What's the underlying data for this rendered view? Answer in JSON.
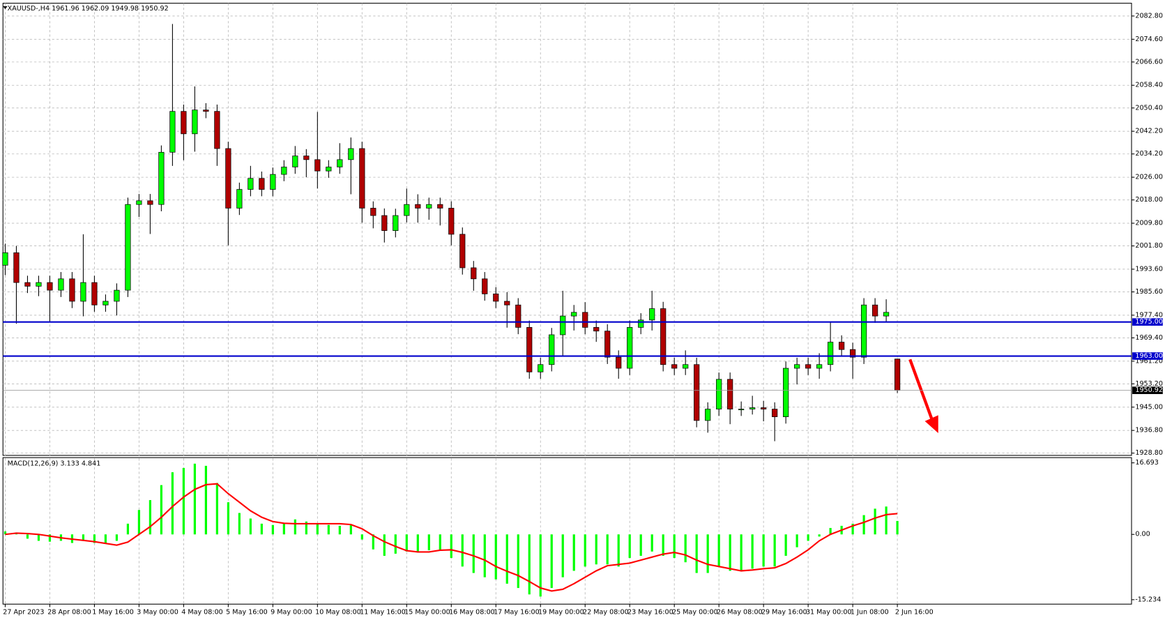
{
  "chart_data": [
    {
      "type": "candlestick",
      "title": "XAUUSD-,H4",
      "categories": [
        "27 Apr 2023",
        null,
        null,
        null,
        "28 Apr 08:00",
        null,
        null,
        null,
        "1 May 16:00",
        null,
        null,
        null,
        "3 May 00:00",
        null,
        null,
        null,
        "4 May 08:00",
        null,
        null,
        null,
        "5 May 16:00",
        null,
        null,
        null,
        "9 May 00:00",
        null,
        null,
        null,
        "10 May 08:00",
        null,
        null,
        null,
        "11 May 16:00",
        null,
        null,
        null,
        "15 May 00:00",
        null,
        null,
        null,
        "16 May 08:00",
        null,
        null,
        null,
        "17 May 16:00",
        null,
        null,
        null,
        "19 May 00:00",
        null,
        null,
        null,
        "22 May 08:00",
        null,
        null,
        null,
        "23 May 16:00",
        null,
        null,
        null,
        "25 May 00:00",
        null,
        null,
        null,
        "26 May 08:00",
        null,
        null,
        null,
        "29 May 16:00",
        null,
        null,
        null,
        "31 May 00:00",
        null,
        null,
        null,
        "1 Jun 08:00",
        null,
        null,
        null,
        "2 Jun 16:00"
      ],
      "open": [
        1995.0,
        1999.4,
        1988.9,
        1987.6,
        1988.9,
        1986.2,
        1990.2,
        1982.3,
        1988.9,
        1981.0,
        1982.3,
        1986.2,
        2016.4,
        2017.7,
        2016.4,
        2034.8,
        2049.2,
        2041.3,
        2049.7,
        2049.2,
        2036.1,
        2015.1,
        2021.7,
        2025.6,
        2021.7,
        2027.0,
        2029.6,
        2033.5,
        2032.2,
        2028.2,
        2029.6,
        2032.2,
        2036.1,
        2015.1,
        2012.5,
        2007.2,
        2012.5,
        2016.4,
        2015.1,
        2016.4,
        2015.1,
        2005.9,
        1994.1,
        1990.2,
        1984.9,
        1982.3,
        1981.0,
        1973.1,
        1957.4,
        1960.0,
        1970.5,
        1977.1,
        1978.4,
        1973.1,
        1971.8,
        1962.6,
        1958.7,
        1973.1,
        1975.7,
        1979.7,
        1960.0,
        1958.7,
        1960.0,
        1940.3,
        1944.3,
        1954.8,
        1944.3,
        1944.3,
        1944.8,
        1944.3,
        1941.6,
        1958.7,
        1960.0,
        1958.7,
        1960.0,
        1967.9,
        1965.3,
        1962.6,
        1981.0,
        1977.1,
        1961.96
      ],
      "high": [
        2002.6,
        2001.8,
        1991.3,
        1991.3,
        1991.3,
        1992.6,
        1992.6,
        2005.9,
        1991.3,
        1984.7,
        1988.6,
        2018.8,
        2020.1,
        2020.1,
        2037.2,
        2080.0,
        2051.6,
        2058.0,
        2052.1,
        2051.6,
        2038.5,
        2024.1,
        2030.0,
        2028.0,
        2029.4,
        2032.0,
        2037.0,
        2035.9,
        2049.0,
        2032.0,
        2038.0,
        2040.0,
        2038.5,
        2017.5,
        2015.0,
        2014.9,
        2022.0,
        2020.0,
        2018.8,
        2018.8,
        2017.5,
        2008.3,
        1996.5,
        1992.6,
        1987.3,
        1985.5,
        1983.4,
        1975.5,
        1962.4,
        1972.9,
        1986.0,
        1981.0,
        1982.0,
        1975.5,
        1974.2,
        1965.0,
        1975.5,
        1978.1,
        1986.0,
        1982.1,
        1962.4,
        1965.0,
        1962.4,
        1946.7,
        1957.2,
        1957.2,
        1947.0,
        1949.0,
        1947.2,
        1946.7,
        1961.1,
        1962.4,
        1962.4,
        1964.0,
        1975.0,
        1970.3,
        1967.7,
        1983.4,
        1983.4,
        1983.0,
        1962.09
      ],
      "low": [
        1991.5,
        1974.4,
        1985.2,
        1984.1,
        1975.0,
        1983.8,
        1979.9,
        1977.0,
        1978.6,
        1978.6,
        1977.3,
        1983.8,
        2012.0,
        2006.0,
        2014.0,
        2030.0,
        2032.0,
        2035.0,
        2046.8,
        2030.0,
        2002.0,
        2012.7,
        2019.3,
        2019.3,
        2019.3,
        2024.6,
        2027.2,
        2026.0,
        2022.0,
        2025.8,
        2027.2,
        2020.0,
        2010.0,
        2008.0,
        2003.0,
        2004.8,
        2010.1,
        2010.0,
        2011.0,
        2009.0,
        2002.0,
        1991.7,
        1986.0,
        1982.5,
        1979.9,
        1973.0,
        1970.7,
        1955.0,
        1955.0,
        1957.6,
        1963.0,
        1972.0,
        1970.7,
        1968.0,
        1960.2,
        1955.0,
        1956.3,
        1970.7,
        1972.0,
        1957.6,
        1956.3,
        1956.3,
        1937.9,
        1936.0,
        1941.9,
        1939.0,
        1941.9,
        1942.4,
        1940.0,
        1933.0,
        1939.2,
        1953.0,
        1956.3,
        1955.0,
        1957.6,
        1962.9,
        1955.0,
        1960.2,
        1974.7,
        1975.0,
        1949.98
      ],
      "close": [
        1999.4,
        1988.9,
        1987.6,
        1988.9,
        1986.2,
        1990.2,
        1982.3,
        1988.9,
        1981.0,
        1982.3,
        1986.2,
        2016.4,
        2017.7,
        2016.4,
        2034.8,
        2049.2,
        2041.3,
        2049.7,
        2049.2,
        2036.1,
        2015.1,
        2021.7,
        2025.6,
        2021.7,
        2027.0,
        2029.6,
        2033.5,
        2032.2,
        2028.2,
        2029.6,
        2032.2,
        2036.1,
        2015.1,
        2012.5,
        2007.2,
        2012.5,
        2016.4,
        2015.1,
        2016.4,
        2015.1,
        2005.9,
        1994.1,
        1990.2,
        1984.9,
        1982.3,
        1981.0,
        1973.1,
        1957.4,
        1960.0,
        1970.5,
        1977.1,
        1978.4,
        1973.1,
        1971.8,
        1962.6,
        1958.7,
        1973.1,
        1975.7,
        1979.7,
        1960.0,
        1958.7,
        1960.0,
        1940.3,
        1944.3,
        1954.8,
        1944.3,
        1944.3,
        1944.8,
        1944.3,
        1941.6,
        1958.7,
        1960.0,
        1958.7,
        1960.0,
        1967.9,
        1965.3,
        1962.6,
        1981.0,
        1977.1,
        1978.4,
        1950.92
      ],
      "up_color": "#00ff00",
      "down_color": "#b00000",
      "ylim": [
        1928.0,
        2087.3
      ],
      "yticks": [
        {
          "value": 2082.8,
          "label": "2082.80"
        },
        {
          "value": 2074.6,
          "label": "2074.60"
        },
        {
          "value": 2066.6,
          "label": "2066.60"
        },
        {
          "value": 2058.4,
          "label": "2058.40"
        },
        {
          "value": 2050.4,
          "label": "2050.40"
        },
        {
          "value": 2042.2,
          "label": "2042.20"
        },
        {
          "value": 2034.2,
          "label": "2034.20"
        },
        {
          "value": 2026.0,
          "label": "2026.00"
        },
        {
          "value": 2018.0,
          "label": "2018.00"
        },
        {
          "value": 2009.8,
          "label": "2009.80"
        },
        {
          "value": 2001.8,
          "label": "2001.80"
        },
        {
          "value": 1993.6,
          "label": "1993.60"
        },
        {
          "value": 1985.6,
          "label": "1985.60"
        },
        {
          "value": 1977.4,
          "label": "1977.40"
        },
        {
          "value": 1969.4,
          "label": "1969.40"
        },
        {
          "value": 1961.2,
          "label": "1961.20"
        },
        {
          "value": 1953.2,
          "label": "1953.20"
        },
        {
          "value": 1945.0,
          "label": "1945.00"
        },
        {
          "value": 1936.8,
          "label": "1936.80"
        },
        {
          "value": 1928.8,
          "label": "1928.80"
        }
      ],
      "hlines": [
        {
          "value": 1975.0,
          "label": "1975.00"
        },
        {
          "value": 1963.0,
          "label": "1963.00"
        }
      ],
      "hline_color": "#0000cc",
      "grid": true
    },
    {
      "type": "macd",
      "title": "MACD(12,26,9)",
      "histogram": {
        "color": "#00ff00",
        "values": [
          0.7,
          0.3,
          -1.0,
          -1.5,
          -1.7,
          -1.5,
          -2.0,
          -1.5,
          -2.0,
          -2.0,
          -1.5,
          2.5,
          5.7,
          8.0,
          11.5,
          14.5,
          15.5,
          16.5,
          16.0,
          12.0,
          7.5,
          5.0,
          3.7,
          2.5,
          2.2,
          2.5,
          3.5,
          3.0,
          2.5,
          2.2,
          2.0,
          2.2,
          -1.2,
          -3.5,
          -5.0,
          -4.5,
          -4.0,
          -4.0,
          -3.7,
          -3.7,
          -5.5,
          -7.5,
          -9.0,
          -10.0,
          -10.5,
          -11.5,
          -12.5,
          -14.0,
          -14.5,
          -12.5,
          -10.0,
          -8.5,
          -7.5,
          -7.0,
          -7.0,
          -7.5,
          -5.5,
          -5.0,
          -4.0,
          -5.0,
          -5.5,
          -6.5,
          -9.0,
          -9.0,
          -7.5,
          -8.5,
          -8.5,
          -8.0,
          -7.5,
          -7.5,
          -5.0,
          -3.0,
          -1.5,
          -0.5,
          1.5,
          2.0,
          2.5,
          4.5,
          6.0,
          6.5,
          3.133
        ]
      },
      "signal": {
        "color": "#ff0000",
        "values": [
          0.0,
          0.3,
          0.2,
          0.0,
          -0.4,
          -0.8,
          -1.1,
          -1.4,
          -1.7,
          -2.1,
          -2.5,
          -1.8,
          0.0,
          1.8,
          4.0,
          6.5,
          8.7,
          10.5,
          11.6,
          11.8,
          9.5,
          7.5,
          5.5,
          4.0,
          3.0,
          2.6,
          2.5,
          2.5,
          2.5,
          2.5,
          2.5,
          2.3,
          1.3,
          -0.3,
          -1.7,
          -2.8,
          -3.8,
          -4.1,
          -4.1,
          -3.7,
          -3.6,
          -4.2,
          -5.0,
          -6.0,
          -7.5,
          -8.6,
          -9.6,
          -11.0,
          -12.5,
          -13.2,
          -12.8,
          -11.5,
          -10.0,
          -8.5,
          -7.3,
          -7.0,
          -6.7,
          -6.0,
          -5.3,
          -4.6,
          -4.2,
          -4.8,
          -6.0,
          -7.0,
          -7.5,
          -8.0,
          -8.5,
          -8.3,
          -8.0,
          -7.8,
          -6.8,
          -5.3,
          -3.6,
          -1.5,
          0.0,
          1.0,
          2.0,
          2.8,
          3.8,
          4.6,
          4.841
        ]
      },
      "ylim": [
        -16.27,
        17.91
      ],
      "yticks": [
        16.693,
        {
          "value": 0,
          "label": "0.00"
        },
        -15.234
      ]
    }
  ]
}
